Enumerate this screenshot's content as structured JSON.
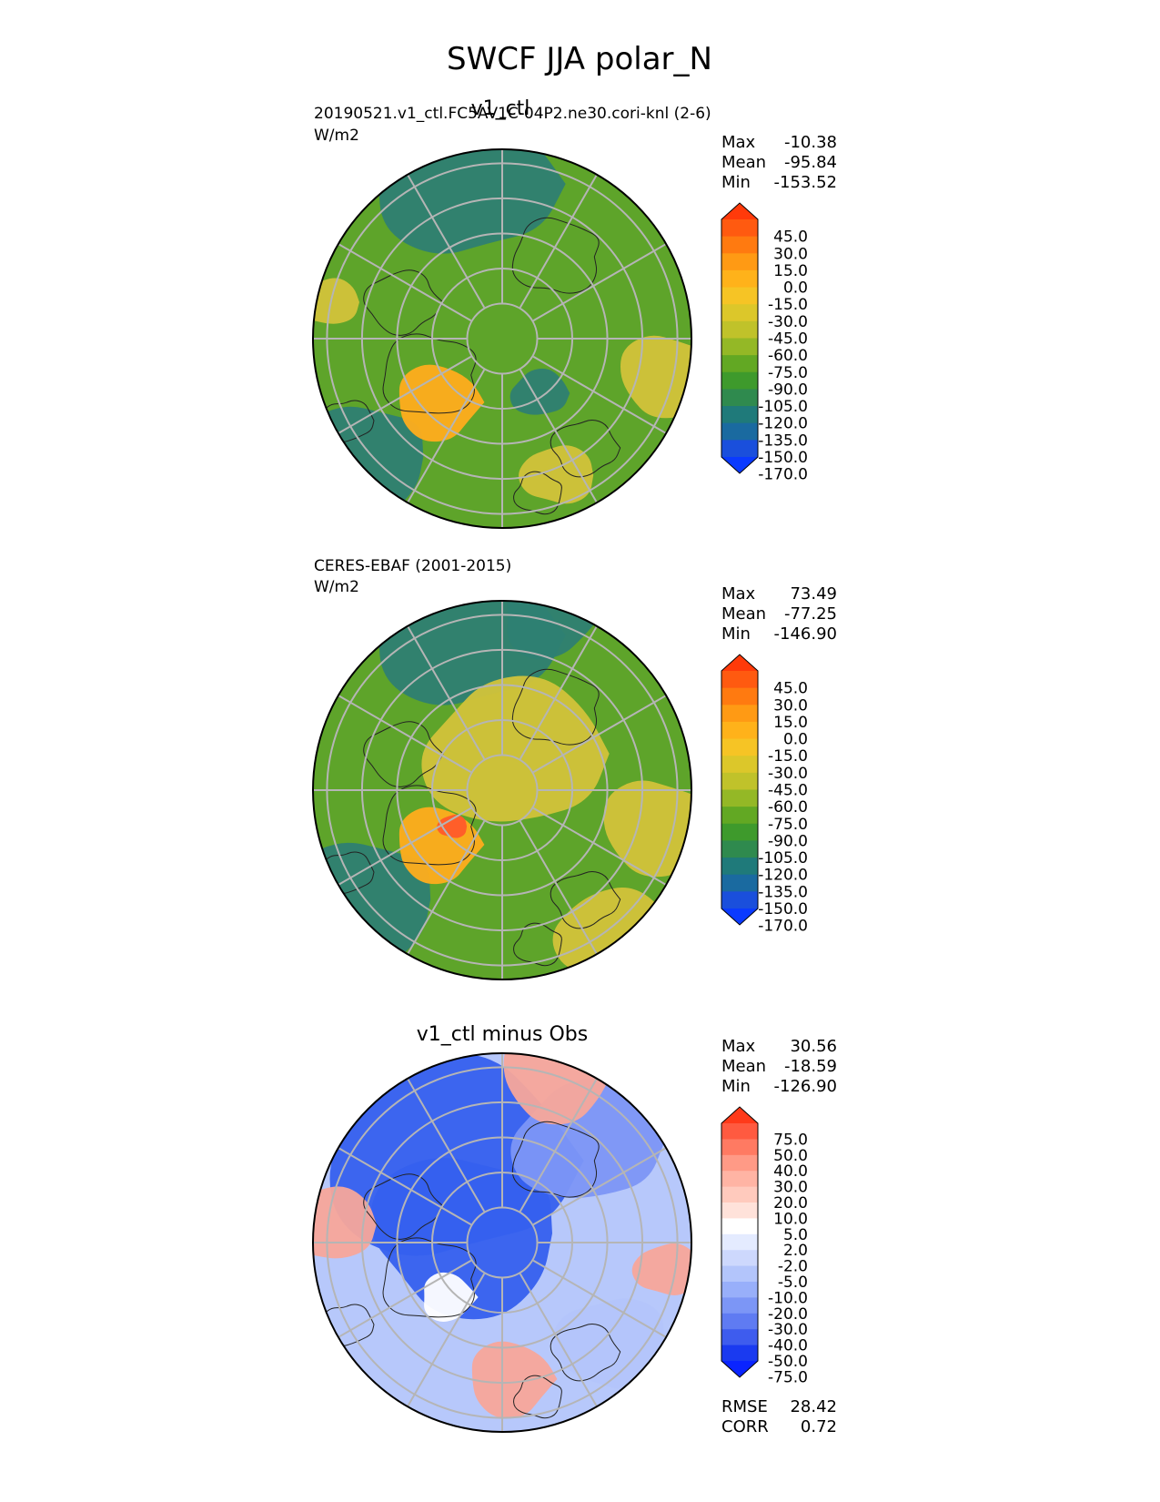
{
  "figure": {
    "title": "SWCF JJA polar_N"
  },
  "panels": [
    {
      "title": "v1_ctl",
      "left_label": "20190521.v1_ctl.FC5AV1C-04P2.ne30.cori-knl (2-6)",
      "units": "W/m2",
      "stats": [
        {
          "label": "Max",
          "value": "-10.38"
        },
        {
          "label": "Mean",
          "value": "-95.84"
        },
        {
          "label": "Min",
          "value": "-153.52"
        }
      ],
      "colorbar": {
        "ticks": [
          "45.0",
          "30.0",
          "15.0",
          "0.0",
          "-15.0",
          "-30.0",
          "-45.0",
          "-60.0",
          "-75.0",
          "-90.0",
          "-105.0",
          "-120.0",
          "-135.0",
          "-150.0",
          "-170.0"
        ]
      }
    },
    {
      "title": "",
      "left_label": "CERES-EBAF (2001-2015)",
      "units": "W/m2",
      "stats": [
        {
          "label": "Max",
          "value": "73.49"
        },
        {
          "label": "Mean",
          "value": "-77.25"
        },
        {
          "label": "Min",
          "value": "-146.90"
        }
      ],
      "colorbar": {
        "ticks": [
          "45.0",
          "30.0",
          "15.0",
          "0.0",
          "-15.0",
          "-30.0",
          "-45.0",
          "-60.0",
          "-75.0",
          "-90.0",
          "-105.0",
          "-120.0",
          "-135.0",
          "-150.0",
          "-170.0"
        ]
      }
    },
    {
      "title": "v1_ctl minus Obs",
      "left_label": "",
      "units": "",
      "stats": [
        {
          "label": "Max",
          "value": "30.56"
        },
        {
          "label": "Mean",
          "value": "-18.59"
        },
        {
          "label": "Min",
          "value": "-126.90"
        }
      ],
      "extra_stats": [
        {
          "label": "RMSE",
          "value": "28.42"
        },
        {
          "label": "CORR",
          "value": "0.72"
        }
      ],
      "colorbar": {
        "ticks": [
          "75.0",
          "50.0",
          "40.0",
          "30.0",
          "20.0",
          "10.0",
          "5.0",
          "2.0",
          "-2.0",
          "-5.0",
          "-10.0",
          "-20.0",
          "-30.0",
          "-40.0",
          "-50.0",
          "-75.0"
        ]
      }
    }
  ],
  "colors": {
    "sequential": [
      "#ff3a0a",
      "#ff5a10",
      "#ff7a10",
      "#ff9a14",
      "#ffb21a",
      "#f6c425",
      "#dcc72a",
      "#c0c22a",
      "#94b826",
      "#62a823",
      "#3e9a2c",
      "#2f8a4e",
      "#1f7a7a",
      "#1a6aa0",
      "#1a4fdc",
      "#0a3aff"
    ],
    "diverging": [
      "#ff3a1a",
      "#ff5a40",
      "#ff7a62",
      "#ff9a86",
      "#ffb4a4",
      "#ffcabd",
      "#ffe2da",
      "#ffffff",
      "#e4ebff",
      "#cdd8fd",
      "#b3c5fb",
      "#98affa",
      "#7c96f6",
      "#5f7bf2",
      "#3e5cee",
      "#1a3af0",
      "#0a24ff"
    ],
    "map_yellow": "#d2c33a",
    "map_green": "#5ea42a",
    "map_teal": "#2e7f72",
    "map_orange": "#ffad1c",
    "map_red": "#ff5a2a",
    "map_light_blue": "#b7c8fb",
    "map_blue": "#3560ee",
    "map_pink": "#f7a69a"
  },
  "chart_data": [
    {
      "type": "heatmap",
      "projection": "north polar stereographic",
      "title": "v1_ctl",
      "subtitle": "20190521.v1_ctl.FC5AV1C-04P2.ne30.cori-knl (2-6)",
      "units": "W/m2",
      "stats": {
        "max": -10.38,
        "mean": -95.84,
        "min": -153.52
      },
      "contour_levels": [
        -170,
        -150,
        -135,
        -120,
        -105,
        -90,
        -75,
        -60,
        -45,
        -30,
        -15,
        0,
        15,
        30,
        45
      ],
      "colorbar_extend": "both"
    },
    {
      "type": "heatmap",
      "projection": "north polar stereographic",
      "title": "",
      "subtitle": "CERES-EBAF (2001-2015)",
      "units": "W/m2",
      "stats": {
        "max": 73.49,
        "mean": -77.25,
        "min": -146.9
      },
      "contour_levels": [
        -170,
        -150,
        -135,
        -120,
        -105,
        -90,
        -75,
        -60,
        -45,
        -30,
        -15,
        0,
        15,
        30,
        45
      ],
      "colorbar_extend": "both"
    },
    {
      "type": "heatmap",
      "projection": "north polar stereographic",
      "title": "v1_ctl minus Obs",
      "stats": {
        "max": 30.56,
        "mean": -18.59,
        "min": -126.9,
        "rmse": 28.42,
        "corr": 0.72
      },
      "contour_levels": [
        -75,
        -50,
        -40,
        -30,
        -20,
        -10,
        -5,
        -2,
        2,
        5,
        10,
        20,
        30,
        40,
        50,
        75
      ],
      "colorbar_extend": "both"
    }
  ]
}
